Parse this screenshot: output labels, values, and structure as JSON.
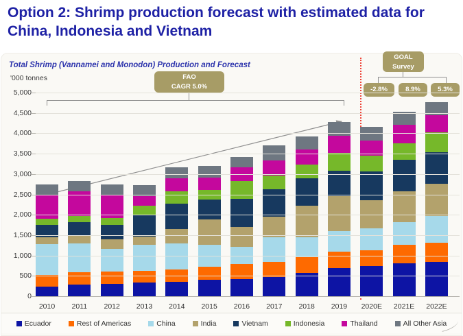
{
  "page": {
    "title": "Option 2: Shrimp production forecast with estimated data for China, Indonesia and Vietnam"
  },
  "chart": {
    "subtitle": "Total Shrimp (Vannamei and Monodon) Production and Forecast",
    "units_label": "'000 tonnes"
  },
  "annotations": {
    "fao_badge": {
      "line1": "FAO",
      "line2": "CAGR 5.0%"
    },
    "goal_badge": {
      "line1": "GOAL",
      "line2": "Survey"
    },
    "growth_badges": [
      "-2.8%",
      "8.9%",
      "5.3%"
    ],
    "badge_color": "#a79c66",
    "divider_color": "#ee4338"
  },
  "chart_data": {
    "type": "bar",
    "stacked": true,
    "title": "Total Shrimp (Vannamei and Monodon) Production and Forecast",
    "xlabel": "",
    "ylabel": "'000 tonnes",
    "ylim": [
      0,
      5000
    ],
    "ytick_step": 500,
    "grid": true,
    "legend_position": "bottom",
    "forecast_divider_after": "2019",
    "categories": [
      "2010",
      "2011",
      "2012",
      "2013",
      "2014",
      "2015",
      "2016",
      "2017",
      "2018",
      "2019",
      "2020E",
      "2021E",
      "2022E"
    ],
    "series": [
      {
        "name": "Ecuador",
        "color": "#0d14a4",
        "values": [
          240,
          290,
          300,
          330,
          350,
          400,
          425,
          465,
          580,
          695,
          740,
          805,
          840
        ]
      },
      {
        "name": "Rest of Americas",
        "color": "#fe6a00",
        "values": [
          280,
          300,
          310,
          295,
          300,
          325,
          360,
          370,
          385,
          400,
          380,
          455,
          480
        ]
      },
      {
        "name": "China",
        "color": "#a6d9ea",
        "values": [
          760,
          710,
          545,
          635,
          655,
          540,
          435,
          615,
          485,
          510,
          540,
          555,
          650
        ]
      },
      {
        "name": "India",
        "color": "#b3a26c",
        "values": [
          170,
          200,
          250,
          205,
          340,
          620,
          480,
          510,
          780,
          850,
          700,
          765,
          785
        ]
      },
      {
        "name": "Vietnam",
        "color": "#17395f",
        "values": [
          310,
          325,
          340,
          520,
          635,
          485,
          700,
          665,
          670,
          625,
          710,
          780,
          780
        ]
      },
      {
        "name": "Indonesia",
        "color": "#76b82a",
        "values": [
          150,
          150,
          170,
          240,
          300,
          240,
          430,
          340,
          330,
          445,
          385,
          400,
          490
        ]
      },
      {
        "name": "Thailand",
        "color": "#c4089d",
        "values": [
          585,
          610,
          575,
          225,
          310,
          300,
          330,
          375,
          365,
          410,
          365,
          445,
          420
        ]
      },
      {
        "name": "All Other Asia",
        "color": "#6e7781",
        "values": [
          255,
          250,
          260,
          285,
          285,
          295,
          255,
          365,
          320,
          340,
          340,
          325,
          330
        ]
      }
    ],
    "totals": [
      2750,
      2835,
      2750,
      2735,
      3175,
      3205,
      3415,
      3705,
      3915,
      4275,
      4160,
      4530,
      4775
    ]
  }
}
